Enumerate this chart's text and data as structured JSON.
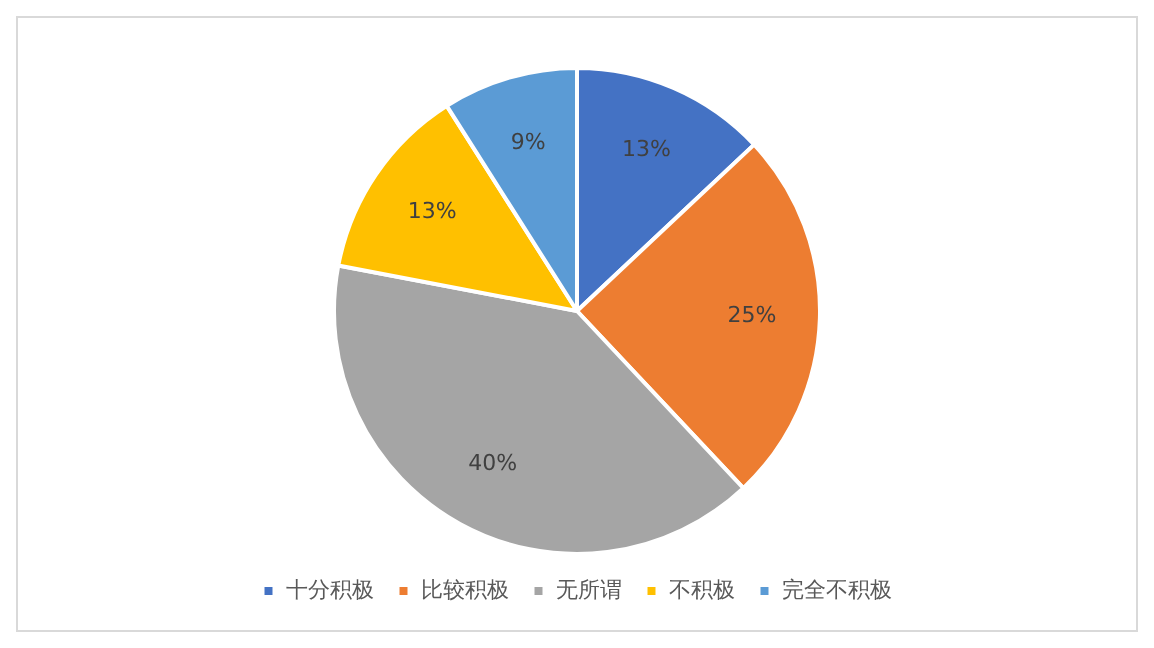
{
  "chart_data": {
    "type": "pie",
    "categories": [
      "十分积极",
      "比较积极",
      "无所谓",
      "不积极",
      "完全不积极"
    ],
    "values": [
      13,
      25,
      40,
      13,
      9
    ],
    "colors": [
      "#4472c4",
      "#ed7d31",
      "#a5a5a5",
      "#ffc000",
      "#5b9bd5"
    ],
    "value_labels": [
      "13%",
      "25%",
      "40%",
      "13%",
      "9%"
    ],
    "legend": "bottom"
  }
}
